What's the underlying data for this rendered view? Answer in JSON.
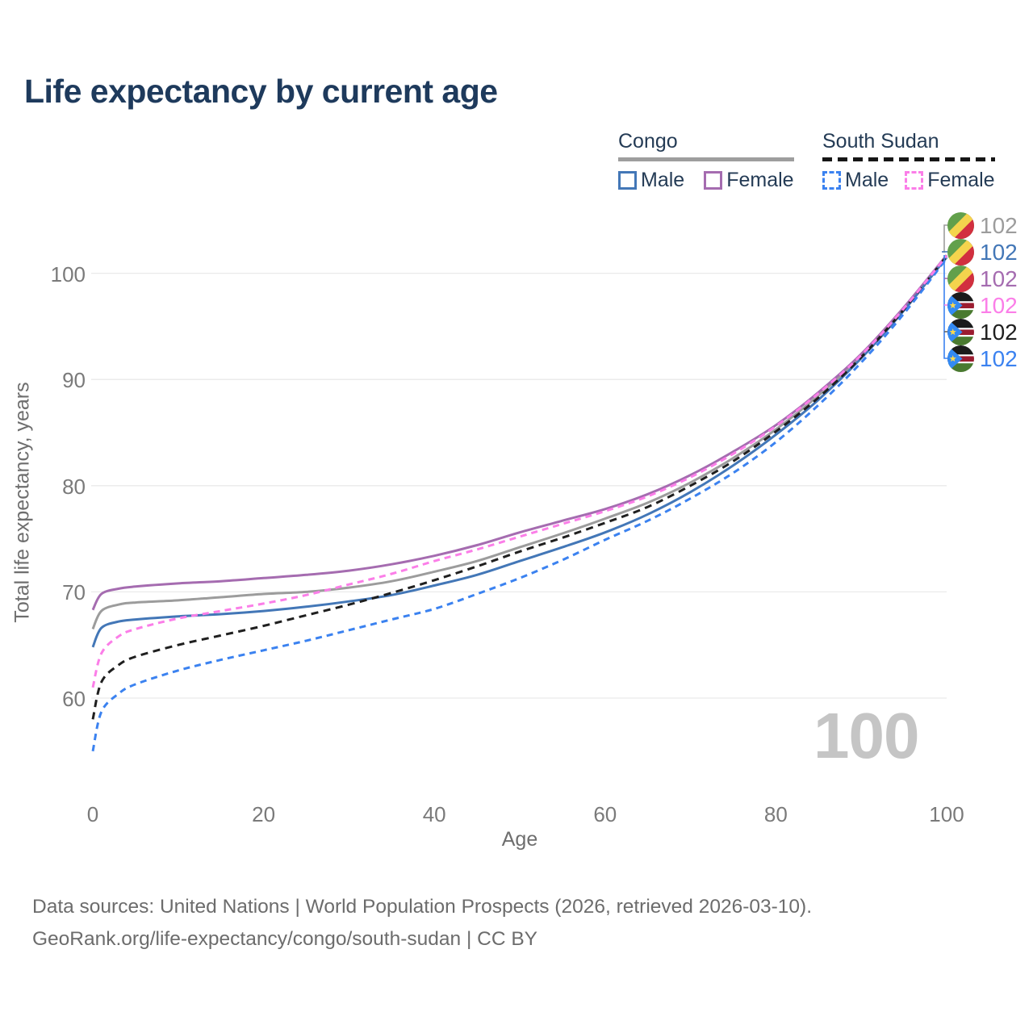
{
  "title": "Life expectancy by current age",
  "legend": {
    "congo": {
      "title": "Congo",
      "male_label": "Male",
      "female_label": "Female"
    },
    "south_sudan": {
      "title": "South Sudan",
      "male_label": "Male",
      "female_label": "Female"
    }
  },
  "watermark": "100",
  "footer": {
    "line1": "Data sources: United Nations | World Population Prospects (2026, retrieved 2026-03-10).",
    "line2": "GeoRank.org/life-expectancy/congo/south-sudan | CC BY"
  },
  "chart_data": {
    "type": "line",
    "title": "Life expectancy by current age",
    "xlabel": "Age",
    "ylabel": "Total life expectancy, years",
    "xlim": [
      0,
      100
    ],
    "ylim": [
      54,
      103
    ],
    "x_ticks": [
      0,
      20,
      40,
      60,
      80,
      100
    ],
    "y_ticks": [
      60,
      70,
      80,
      90,
      100
    ],
    "grid": "horizontal-only",
    "legend_position": "top-right",
    "hover_age": 100,
    "series": [
      {
        "name": "Congo",
        "group": "Congo",
        "sex": "Total",
        "style": "solid",
        "color": "#9c9c9c",
        "end_value": 102,
        "points": [
          [
            0,
            66.5
          ],
          [
            1,
            68.2
          ],
          [
            3,
            68.8
          ],
          [
            5,
            69.0
          ],
          [
            10,
            69.2
          ],
          [
            15,
            69.5
          ],
          [
            20,
            69.8
          ],
          [
            25,
            70.0
          ],
          [
            30,
            70.4
          ],
          [
            35,
            71.0
          ],
          [
            40,
            71.9
          ],
          [
            45,
            72.9
          ],
          [
            50,
            74.2
          ],
          [
            55,
            75.5
          ],
          [
            60,
            76.9
          ],
          [
            65,
            78.4
          ],
          [
            70,
            80.3
          ],
          [
            75,
            82.6
          ],
          [
            80,
            85.3
          ],
          [
            85,
            88.5
          ],
          [
            90,
            92.2
          ],
          [
            95,
            96.7
          ],
          [
            100,
            101.6
          ]
        ]
      },
      {
        "name": "Congo Female",
        "group": "Congo",
        "sex": "Female",
        "style": "solid",
        "color": "#a56cb0",
        "end_value": 102,
        "points": [
          [
            0,
            68.3
          ],
          [
            1,
            69.8
          ],
          [
            3,
            70.3
          ],
          [
            5,
            70.5
          ],
          [
            10,
            70.8
          ],
          [
            15,
            71.0
          ],
          [
            20,
            71.3
          ],
          [
            25,
            71.6
          ],
          [
            30,
            72.0
          ],
          [
            35,
            72.6
          ],
          [
            40,
            73.4
          ],
          [
            45,
            74.4
          ],
          [
            50,
            75.6
          ],
          [
            55,
            76.7
          ],
          [
            60,
            77.8
          ],
          [
            65,
            79.2
          ],
          [
            70,
            81.0
          ],
          [
            75,
            83.2
          ],
          [
            80,
            85.7
          ],
          [
            85,
            88.8
          ],
          [
            90,
            92.4
          ],
          [
            95,
            96.8
          ],
          [
            100,
            101.7
          ]
        ]
      },
      {
        "name": "Congo Male",
        "group": "Congo",
        "sex": "Male",
        "style": "solid",
        "color": "#4377b7",
        "end_value": 102,
        "points": [
          [
            0,
            64.8
          ],
          [
            1,
            66.6
          ],
          [
            3,
            67.2
          ],
          [
            5,
            67.4
          ],
          [
            10,
            67.7
          ],
          [
            15,
            67.9
          ],
          [
            20,
            68.2
          ],
          [
            25,
            68.6
          ],
          [
            30,
            69.1
          ],
          [
            35,
            69.7
          ],
          [
            40,
            70.6
          ],
          [
            45,
            71.6
          ],
          [
            50,
            72.9
          ],
          [
            55,
            74.2
          ],
          [
            60,
            75.6
          ],
          [
            65,
            77.3
          ],
          [
            70,
            79.4
          ],
          [
            75,
            81.9
          ],
          [
            80,
            84.8
          ],
          [
            85,
            88.1
          ],
          [
            90,
            92.0
          ],
          [
            95,
            96.5
          ],
          [
            100,
            101.5
          ]
        ]
      },
      {
        "name": "South Sudan",
        "group": "South Sudan",
        "sex": "Total",
        "style": "dashed",
        "color": "#1f1f1f",
        "end_value": 102,
        "points": [
          [
            0,
            58.0
          ],
          [
            1,
            61.5
          ],
          [
            3,
            63.1
          ],
          [
            5,
            63.9
          ],
          [
            10,
            65.0
          ],
          [
            15,
            65.9
          ],
          [
            20,
            66.8
          ],
          [
            25,
            67.8
          ],
          [
            30,
            68.8
          ],
          [
            35,
            69.9
          ],
          [
            40,
            71.1
          ],
          [
            45,
            72.4
          ],
          [
            50,
            73.8
          ],
          [
            55,
            75.1
          ],
          [
            60,
            76.5
          ],
          [
            65,
            78.0
          ],
          [
            70,
            80.0
          ],
          [
            75,
            82.3
          ],
          [
            80,
            85.1
          ],
          [
            85,
            88.3
          ],
          [
            90,
            92.1
          ],
          [
            95,
            96.6
          ],
          [
            100,
            101.6
          ]
        ]
      },
      {
        "name": "South Sudan Male",
        "group": "South Sudan",
        "sex": "Male",
        "style": "dashed",
        "color": "#3b82f0",
        "end_value": 102,
        "points": [
          [
            0,
            55.0
          ],
          [
            1,
            58.7
          ],
          [
            3,
            60.4
          ],
          [
            5,
            61.3
          ],
          [
            10,
            62.6
          ],
          [
            15,
            63.6
          ],
          [
            20,
            64.5
          ],
          [
            25,
            65.4
          ],
          [
            30,
            66.4
          ],
          [
            35,
            67.4
          ],
          [
            40,
            68.4
          ],
          [
            45,
            69.8
          ],
          [
            50,
            71.3
          ],
          [
            55,
            73.0
          ],
          [
            60,
            74.9
          ],
          [
            65,
            76.7
          ],
          [
            70,
            78.8
          ],
          [
            75,
            81.2
          ],
          [
            80,
            84.1
          ],
          [
            85,
            87.6
          ],
          [
            90,
            91.6
          ],
          [
            95,
            96.2
          ],
          [
            100,
            101.4
          ]
        ]
      },
      {
        "name": "South Sudan Female",
        "group": "South Sudan",
        "sex": "Female",
        "style": "dashed",
        "color": "#fb7ee8",
        "end_value": 102,
        "points": [
          [
            0,
            61.0
          ],
          [
            1,
            64.2
          ],
          [
            3,
            65.8
          ],
          [
            5,
            66.5
          ],
          [
            10,
            67.5
          ],
          [
            15,
            68.2
          ],
          [
            20,
            68.9
          ],
          [
            25,
            69.7
          ],
          [
            30,
            70.7
          ],
          [
            35,
            71.7
          ],
          [
            40,
            72.9
          ],
          [
            45,
            74.0
          ],
          [
            50,
            75.2
          ],
          [
            55,
            76.4
          ],
          [
            60,
            77.6
          ],
          [
            65,
            79.0
          ],
          [
            70,
            80.8
          ],
          [
            75,
            83.0
          ],
          [
            80,
            85.6
          ],
          [
            85,
            88.7
          ],
          [
            90,
            92.3
          ],
          [
            95,
            96.7
          ],
          [
            100,
            101.65
          ]
        ]
      }
    ],
    "end_labels": [
      {
        "flag": "congo",
        "series": "Congo",
        "value": "102",
        "color": "#9c9c9c"
      },
      {
        "flag": "congo",
        "series": "Congo Male",
        "value": "102",
        "color": "#4377b7"
      },
      {
        "flag": "congo",
        "series": "Congo Female",
        "value": "102",
        "color": "#a56cb0"
      },
      {
        "flag": "south-sudan",
        "series": "South Sudan Female",
        "value": "102",
        "color": "#fb7ee8"
      },
      {
        "flag": "south-sudan",
        "series": "South Sudan",
        "value": "102",
        "color": "#1f1f1f"
      },
      {
        "flag": "south-sudan",
        "series": "South Sudan Male",
        "value": "102",
        "color": "#3b82f0"
      }
    ]
  }
}
